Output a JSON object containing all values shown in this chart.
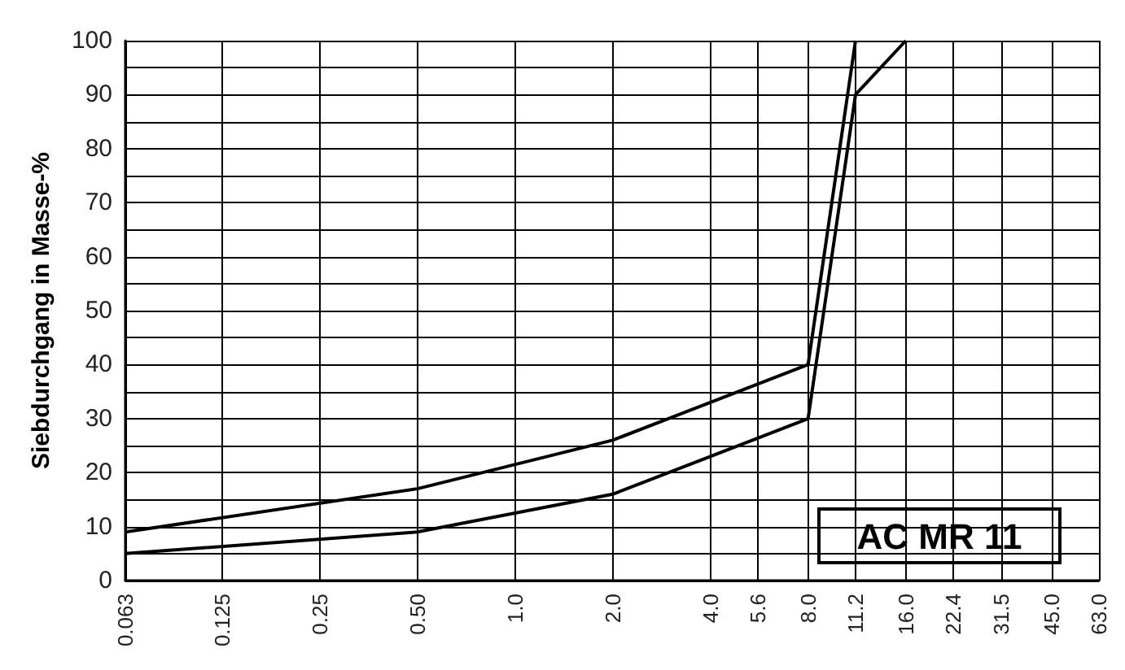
{
  "chart_data": {
    "type": "line",
    "ylabel": "Siebdurchgang in Masse-%",
    "log": "x",
    "grid": true,
    "marker": "none",
    "line_style": "solid",
    "xlim": [
      0.063,
      63.0
    ],
    "xticks": [
      {
        "value": 0.063,
        "label": "0.063"
      },
      {
        "value": 0.125,
        "label": "0.125"
      },
      {
        "value": 0.25,
        "label": "0.25"
      },
      {
        "value": 0.5,
        "label": "0.50"
      },
      {
        "value": 1,
        "label": "1.0"
      },
      {
        "value": 2,
        "label": "2.0"
      },
      {
        "value": 4,
        "label": "4.0"
      },
      {
        "value": 5.6,
        "label": "5.6"
      },
      {
        "value": 8,
        "label": "8.0"
      },
      {
        "value": 11.2,
        "label": "11.2"
      },
      {
        "value": 16,
        "label": "16.0"
      },
      {
        "value": 22.4,
        "label": "22.4"
      },
      {
        "value": 31.5,
        "label": "31.5"
      },
      {
        "value": 45,
        "label": "45.0"
      },
      {
        "value": 63,
        "label": "63.0"
      }
    ],
    "ylim": [
      0,
      100
    ],
    "yticks": [
      0,
      {
        "value": 5,
        "label": null
      },
      10,
      {
        "value": 15,
        "label": null
      },
      20,
      {
        "value": 25,
        "label": null
      },
      30,
      {
        "value": 35,
        "label": null
      },
      40,
      {
        "value": 45,
        "label": null
      },
      50,
      {
        "value": 55,
        "label": null
      },
      60,
      {
        "value": 65,
        "label": null
      },
      70,
      {
        "value": 75,
        "label": null
      },
      80,
      {
        "value": 85,
        "label": null
      },
      90,
      {
        "value": 95,
        "label": null
      },
      100
    ],
    "series": [
      {
        "color": "#000000",
        "x": [
          0.063,
          0.5,
          2,
          4,
          8,
          11.2
        ],
        "values": [
          9,
          17,
          26,
          33,
          40,
          100
        ]
      },
      {
        "color": "#000000",
        "x": [
          0.063,
          0.5,
          2,
          4,
          8,
          11.2,
          16
        ],
        "values": [
          5,
          9,
          16,
          23,
          30,
          90,
          100
        ]
      }
    ],
    "annotations": [
      "AC MR 11"
    ]
  }
}
